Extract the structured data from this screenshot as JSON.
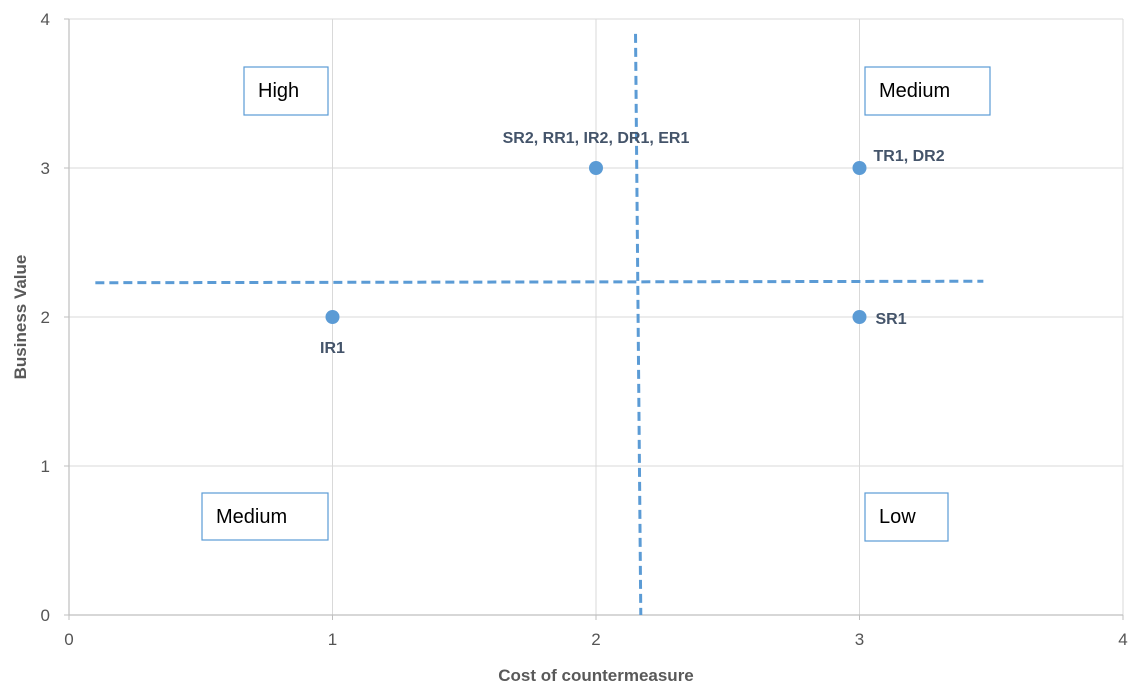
{
  "chart_data": {
    "type": "scatter",
    "title": "",
    "xlabel": "Cost of countermeasure",
    "ylabel": "Business Value",
    "xlim": [
      0,
      4
    ],
    "ylim": [
      0,
      4
    ],
    "x_ticks": [
      "0",
      "1",
      "2",
      "3",
      "4"
    ],
    "y_ticks": [
      "0",
      "1",
      "2",
      "3",
      "4"
    ],
    "grid": true,
    "legend": "none",
    "colors": {
      "marker": "#5b9bd5",
      "threshold_line": "#5b9bd5",
      "grid": "#d9d9d9",
      "axis": "#bfbfbf",
      "quadrant_box_border": "#5b9bd5"
    },
    "points": [
      {
        "x": 1,
        "y": 2,
        "label": "IR1"
      },
      {
        "x": 2,
        "y": 3,
        "label": "SR2, RR1, IR2, DR1, ER1"
      },
      {
        "x": 3,
        "y": 3,
        "label": "TR1, DR2"
      },
      {
        "x": 3,
        "y": 2,
        "label": "SR1"
      }
    ],
    "threshold_lines": [
      {
        "orientation": "horizontal",
        "from": [
          0.1,
          2.23
        ],
        "to": [
          3.47,
          2.24
        ],
        "style": "dashed"
      },
      {
        "orientation": "vertical",
        "from": [
          2.15,
          3.9
        ],
        "to": [
          2.17,
          0.0
        ],
        "style": "dashed"
      }
    ],
    "quadrant_labels": [
      {
        "text": "High",
        "quadrant": "top-left"
      },
      {
        "text": "Medium",
        "quadrant": "top-right"
      },
      {
        "text": "Medium",
        "quadrant": "bottom-left"
      },
      {
        "text": "Low",
        "quadrant": "bottom-right"
      }
    ]
  }
}
